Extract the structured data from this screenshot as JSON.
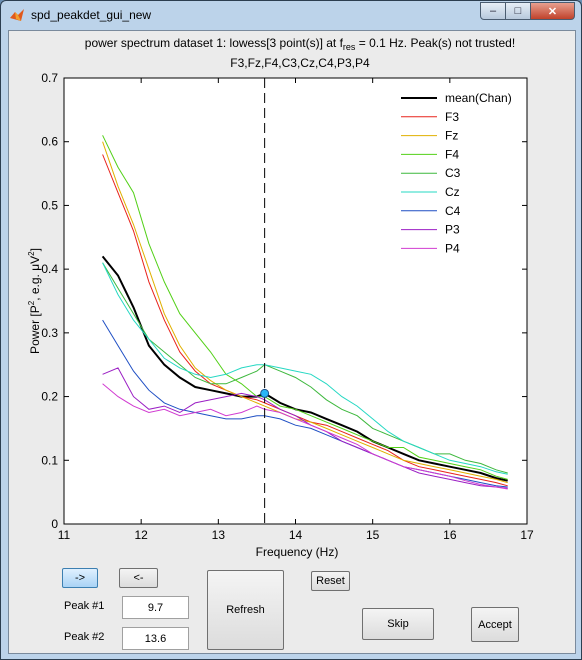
{
  "window": {
    "title": "spd_peakdet_gui_new",
    "close_glyph": "✕",
    "min_glyph": "–",
    "max_glyph": "□"
  },
  "plot": {
    "title_part1": "power spectrum dataset 1: lowess[3 point(s)] at f",
    "title_sub": "res",
    "title_part2": " = 0.1 Hz. Peak(s) not trusted!",
    "title_line2": "F3,Fz,F4,C3,Cz,C4,P3,P4",
    "xlabel": "Frequency (Hz)",
    "ylabel_part1": "Power [P",
    "ylabel_sup1": "2",
    "ylabel_part2": ", e.g. μV",
    "ylabel_sup2": "2",
    "ylabel_part3": "]"
  },
  "controls": {
    "next_label": "->",
    "prev_label": "<-",
    "reset_label": "Reset",
    "refresh_label": "Refresh",
    "skip_label": "Skip",
    "accept_label": "Accept",
    "peak1_label": "Peak #1",
    "peak1_value": "9.7",
    "peak2_label": "Peak #2",
    "peak2_value": "13.6"
  },
  "chart_data": {
    "type": "line",
    "xlim": [
      11,
      17
    ],
    "ylim": [
      0,
      0.7
    ],
    "xticks": [
      "11",
      "12",
      "13",
      "14",
      "15",
      "16",
      "17"
    ],
    "yticks": [
      "0",
      "0.1",
      "0.2",
      "0.3",
      "0.4",
      "0.5",
      "0.6",
      "0.7"
    ],
    "legend_position": "top-right",
    "marker_line_x": 13.6,
    "marker_point": {
      "x": 13.6,
      "y": 0.205
    },
    "series": [
      {
        "name": "mean(Chan)",
        "color": "#000000",
        "width": 2,
        "x": [
          11.5,
          11.7,
          11.9,
          12.1,
          12.3,
          12.5,
          12.7,
          12.9,
          13.1,
          13.3,
          13.5,
          13.6,
          13.8,
          14.0,
          14.2,
          14.4,
          14.6,
          14.8,
          15.0,
          15.2,
          15.4,
          15.6,
          15.8,
          16.0,
          16.2,
          16.4,
          16.6,
          16.75
        ],
        "y": [
          0.42,
          0.39,
          0.34,
          0.28,
          0.25,
          0.23,
          0.215,
          0.21,
          0.205,
          0.2,
          0.2,
          0.205,
          0.19,
          0.18,
          0.175,
          0.165,
          0.155,
          0.145,
          0.13,
          0.12,
          0.11,
          0.1,
          0.095,
          0.09,
          0.085,
          0.08,
          0.072,
          0.068
        ]
      },
      {
        "name": "F3",
        "color": "#e8231c",
        "width": 1,
        "x": [
          11.5,
          11.7,
          11.9,
          12.1,
          12.3,
          12.5,
          12.7,
          12.9,
          13.1,
          13.3,
          13.5,
          13.6,
          13.8,
          14.0,
          14.2,
          14.4,
          14.6,
          14.8,
          15.0,
          15.2,
          15.4,
          15.6,
          15.8,
          16.0,
          16.2,
          16.4,
          16.6,
          16.75
        ],
        "y": [
          0.58,
          0.52,
          0.46,
          0.38,
          0.32,
          0.27,
          0.24,
          0.22,
          0.21,
          0.2,
          0.195,
          0.19,
          0.18,
          0.17,
          0.16,
          0.155,
          0.145,
          0.135,
          0.125,
          0.115,
          0.1,
          0.09,
          0.085,
          0.08,
          0.075,
          0.07,
          0.065,
          0.06
        ]
      },
      {
        "name": "Fz",
        "color": "#e0b000",
        "width": 1,
        "x": [
          11.5,
          11.7,
          11.9,
          12.1,
          12.3,
          12.5,
          12.7,
          12.9,
          13.1,
          13.3,
          13.5,
          13.6,
          13.8,
          14.0,
          14.2,
          14.4,
          14.6,
          14.8,
          15.0,
          15.2,
          15.4,
          15.6,
          15.8,
          16.0,
          16.2,
          16.4,
          16.6,
          16.75
        ],
        "y": [
          0.6,
          0.53,
          0.47,
          0.4,
          0.33,
          0.28,
          0.245,
          0.225,
          0.21,
          0.2,
          0.19,
          0.185,
          0.175,
          0.165,
          0.16,
          0.15,
          0.14,
          0.13,
          0.12,
          0.11,
          0.1,
          0.095,
          0.09,
          0.085,
          0.08,
          0.075,
          0.07,
          0.065
        ]
      },
      {
        "name": "F4",
        "color": "#52d017",
        "width": 1,
        "x": [
          11.5,
          11.7,
          11.9,
          12.1,
          12.3,
          12.5,
          12.7,
          12.9,
          13.1,
          13.3,
          13.5,
          13.6,
          13.8,
          14.0,
          14.2,
          14.4,
          14.6,
          14.8,
          15.0,
          15.2,
          15.4,
          15.6,
          15.8,
          16.0,
          16.2,
          16.4,
          16.6,
          16.75
        ],
        "y": [
          0.61,
          0.56,
          0.52,
          0.44,
          0.38,
          0.33,
          0.3,
          0.27,
          0.235,
          0.22,
          0.2,
          0.2,
          0.185,
          0.18,
          0.17,
          0.16,
          0.15,
          0.14,
          0.13,
          0.12,
          0.12,
          0.105,
          0.1,
          0.095,
          0.09,
          0.085,
          0.075,
          0.07
        ]
      },
      {
        "name": "C3",
        "color": "#3db83d",
        "width": 1,
        "x": [
          11.5,
          11.7,
          11.9,
          12.1,
          12.3,
          12.5,
          12.7,
          12.9,
          13.1,
          13.3,
          13.5,
          13.6,
          13.8,
          14.0,
          14.2,
          14.4,
          14.6,
          14.8,
          15.0,
          15.2,
          15.4,
          15.6,
          15.8,
          16.0,
          16.2,
          16.4,
          16.6,
          16.75
        ],
        "y": [
          0.41,
          0.37,
          0.33,
          0.29,
          0.27,
          0.25,
          0.23,
          0.22,
          0.22,
          0.23,
          0.24,
          0.25,
          0.24,
          0.23,
          0.215,
          0.195,
          0.18,
          0.17,
          0.15,
          0.14,
          0.13,
          0.12,
          0.11,
          0.11,
          0.1,
          0.095,
          0.085,
          0.08
        ]
      },
      {
        "name": "Cz",
        "color": "#25d8c3",
        "width": 1,
        "x": [
          11.5,
          11.7,
          11.9,
          12.1,
          12.3,
          12.5,
          12.7,
          12.9,
          13.1,
          13.3,
          13.5,
          13.6,
          13.8,
          14.0,
          14.2,
          14.4,
          14.6,
          14.8,
          15.0,
          15.2,
          15.4,
          15.6,
          15.8,
          16.0,
          16.2,
          16.4,
          16.6,
          16.75
        ],
        "y": [
          0.41,
          0.36,
          0.32,
          0.29,
          0.26,
          0.245,
          0.235,
          0.23,
          0.235,
          0.245,
          0.25,
          0.25,
          0.245,
          0.24,
          0.235,
          0.22,
          0.2,
          0.185,
          0.165,
          0.145,
          0.13,
          0.12,
          0.11,
          0.1,
          0.095,
          0.09,
          0.082,
          0.078
        ]
      },
      {
        "name": "C4",
        "color": "#1f4fc4",
        "width": 1,
        "x": [
          11.5,
          11.7,
          11.9,
          12.1,
          12.3,
          12.5,
          12.7,
          12.9,
          13.1,
          13.3,
          13.5,
          13.6,
          13.8,
          14.0,
          14.2,
          14.4,
          14.6,
          14.8,
          15.0,
          15.2,
          15.4,
          15.6,
          15.8,
          16.0,
          16.2,
          16.4,
          16.6,
          16.75
        ],
        "y": [
          0.32,
          0.28,
          0.24,
          0.21,
          0.19,
          0.18,
          0.175,
          0.17,
          0.165,
          0.165,
          0.17,
          0.17,
          0.165,
          0.155,
          0.15,
          0.14,
          0.13,
          0.12,
          0.11,
          0.1,
          0.09,
          0.085,
          0.08,
          0.075,
          0.07,
          0.065,
          0.06,
          0.058
        ]
      },
      {
        "name": "P3",
        "color": "#9b1fc4",
        "width": 1,
        "x": [
          11.5,
          11.7,
          11.9,
          12.1,
          12.3,
          12.5,
          12.7,
          12.9,
          13.1,
          13.3,
          13.5,
          13.6,
          13.8,
          14.0,
          14.2,
          14.4,
          14.6,
          14.8,
          15.0,
          15.2,
          15.4,
          15.6,
          15.8,
          16.0,
          16.2,
          16.4,
          16.6,
          16.75
        ],
        "y": [
          0.235,
          0.245,
          0.2,
          0.18,
          0.185,
          0.175,
          0.19,
          0.195,
          0.2,
          0.205,
          0.2,
          0.195,
          0.18,
          0.17,
          0.155,
          0.145,
          0.13,
          0.12,
          0.11,
          0.1,
          0.09,
          0.08,
          0.075,
          0.07,
          0.065,
          0.06,
          0.058,
          0.056
        ]
      },
      {
        "name": "P4",
        "color": "#d13bd1",
        "width": 1,
        "x": [
          11.5,
          11.7,
          11.9,
          12.1,
          12.3,
          12.5,
          12.7,
          12.9,
          13.1,
          13.3,
          13.5,
          13.6,
          13.8,
          14.0,
          14.2,
          14.4,
          14.6,
          14.8,
          15.0,
          15.2,
          15.4,
          15.6,
          15.8,
          16.0,
          16.2,
          16.4,
          16.6,
          16.75
        ],
        "y": [
          0.22,
          0.2,
          0.185,
          0.175,
          0.18,
          0.17,
          0.175,
          0.18,
          0.17,
          0.175,
          0.185,
          0.18,
          0.175,
          0.165,
          0.155,
          0.145,
          0.135,
          0.125,
          0.11,
          0.1,
          0.09,
          0.085,
          0.08,
          0.075,
          0.068,
          0.062,
          0.058,
          0.055
        ]
      }
    ]
  }
}
